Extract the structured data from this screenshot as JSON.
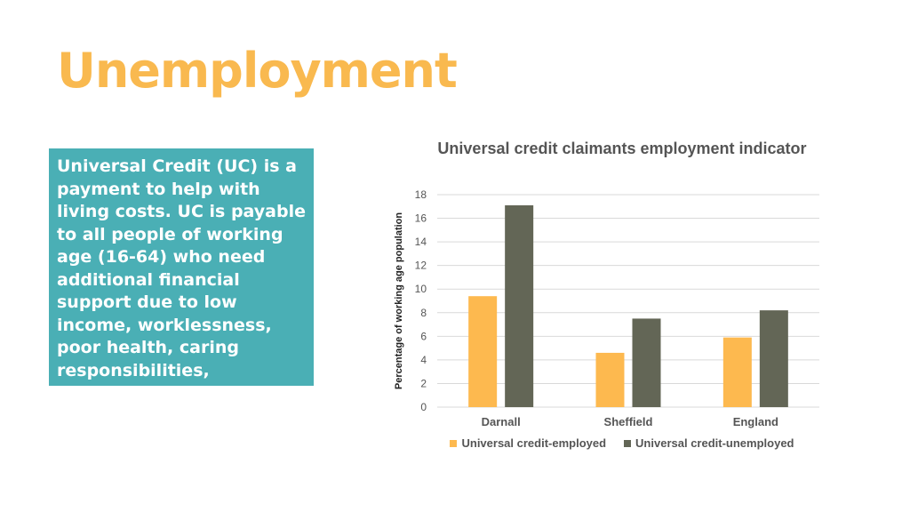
{
  "slide": {
    "title": "Unemployment",
    "description": "Universal Credit (UC) is a payment to help with living costs. UC is payable to all people of working age (16-64) who need additional financial support due to low income, worklessness, poor health, caring responsibilities, bereavement or disability."
  },
  "colors": {
    "title": "#f9b94f",
    "info_box": "#4aafb5",
    "series_employed": "#fdb94f",
    "series_unemployed": "#636656",
    "gridline": "#d9d9d9",
    "axis_text": "#555555"
  },
  "chart_data": {
    "type": "bar",
    "title": "Universal credit claimants employment indicator",
    "xlabel": "",
    "ylabel": "Percentage of working age population",
    "categories": [
      "Darnall",
      "Sheffield",
      "England"
    ],
    "series": [
      {
        "name": "Universal credit-employed",
        "values": [
          9.4,
          4.6,
          5.9
        ]
      },
      {
        "name": "Universal credit-unemployed",
        "values": [
          17.1,
          7.5,
          8.2
        ]
      }
    ],
    "ylim": [
      0,
      18
    ],
    "yticks": [
      "0",
      "2",
      "4",
      "6",
      "8",
      "10",
      "12",
      "14",
      "16",
      "18"
    ],
    "grid": true,
    "legend_position": "bottom"
  }
}
